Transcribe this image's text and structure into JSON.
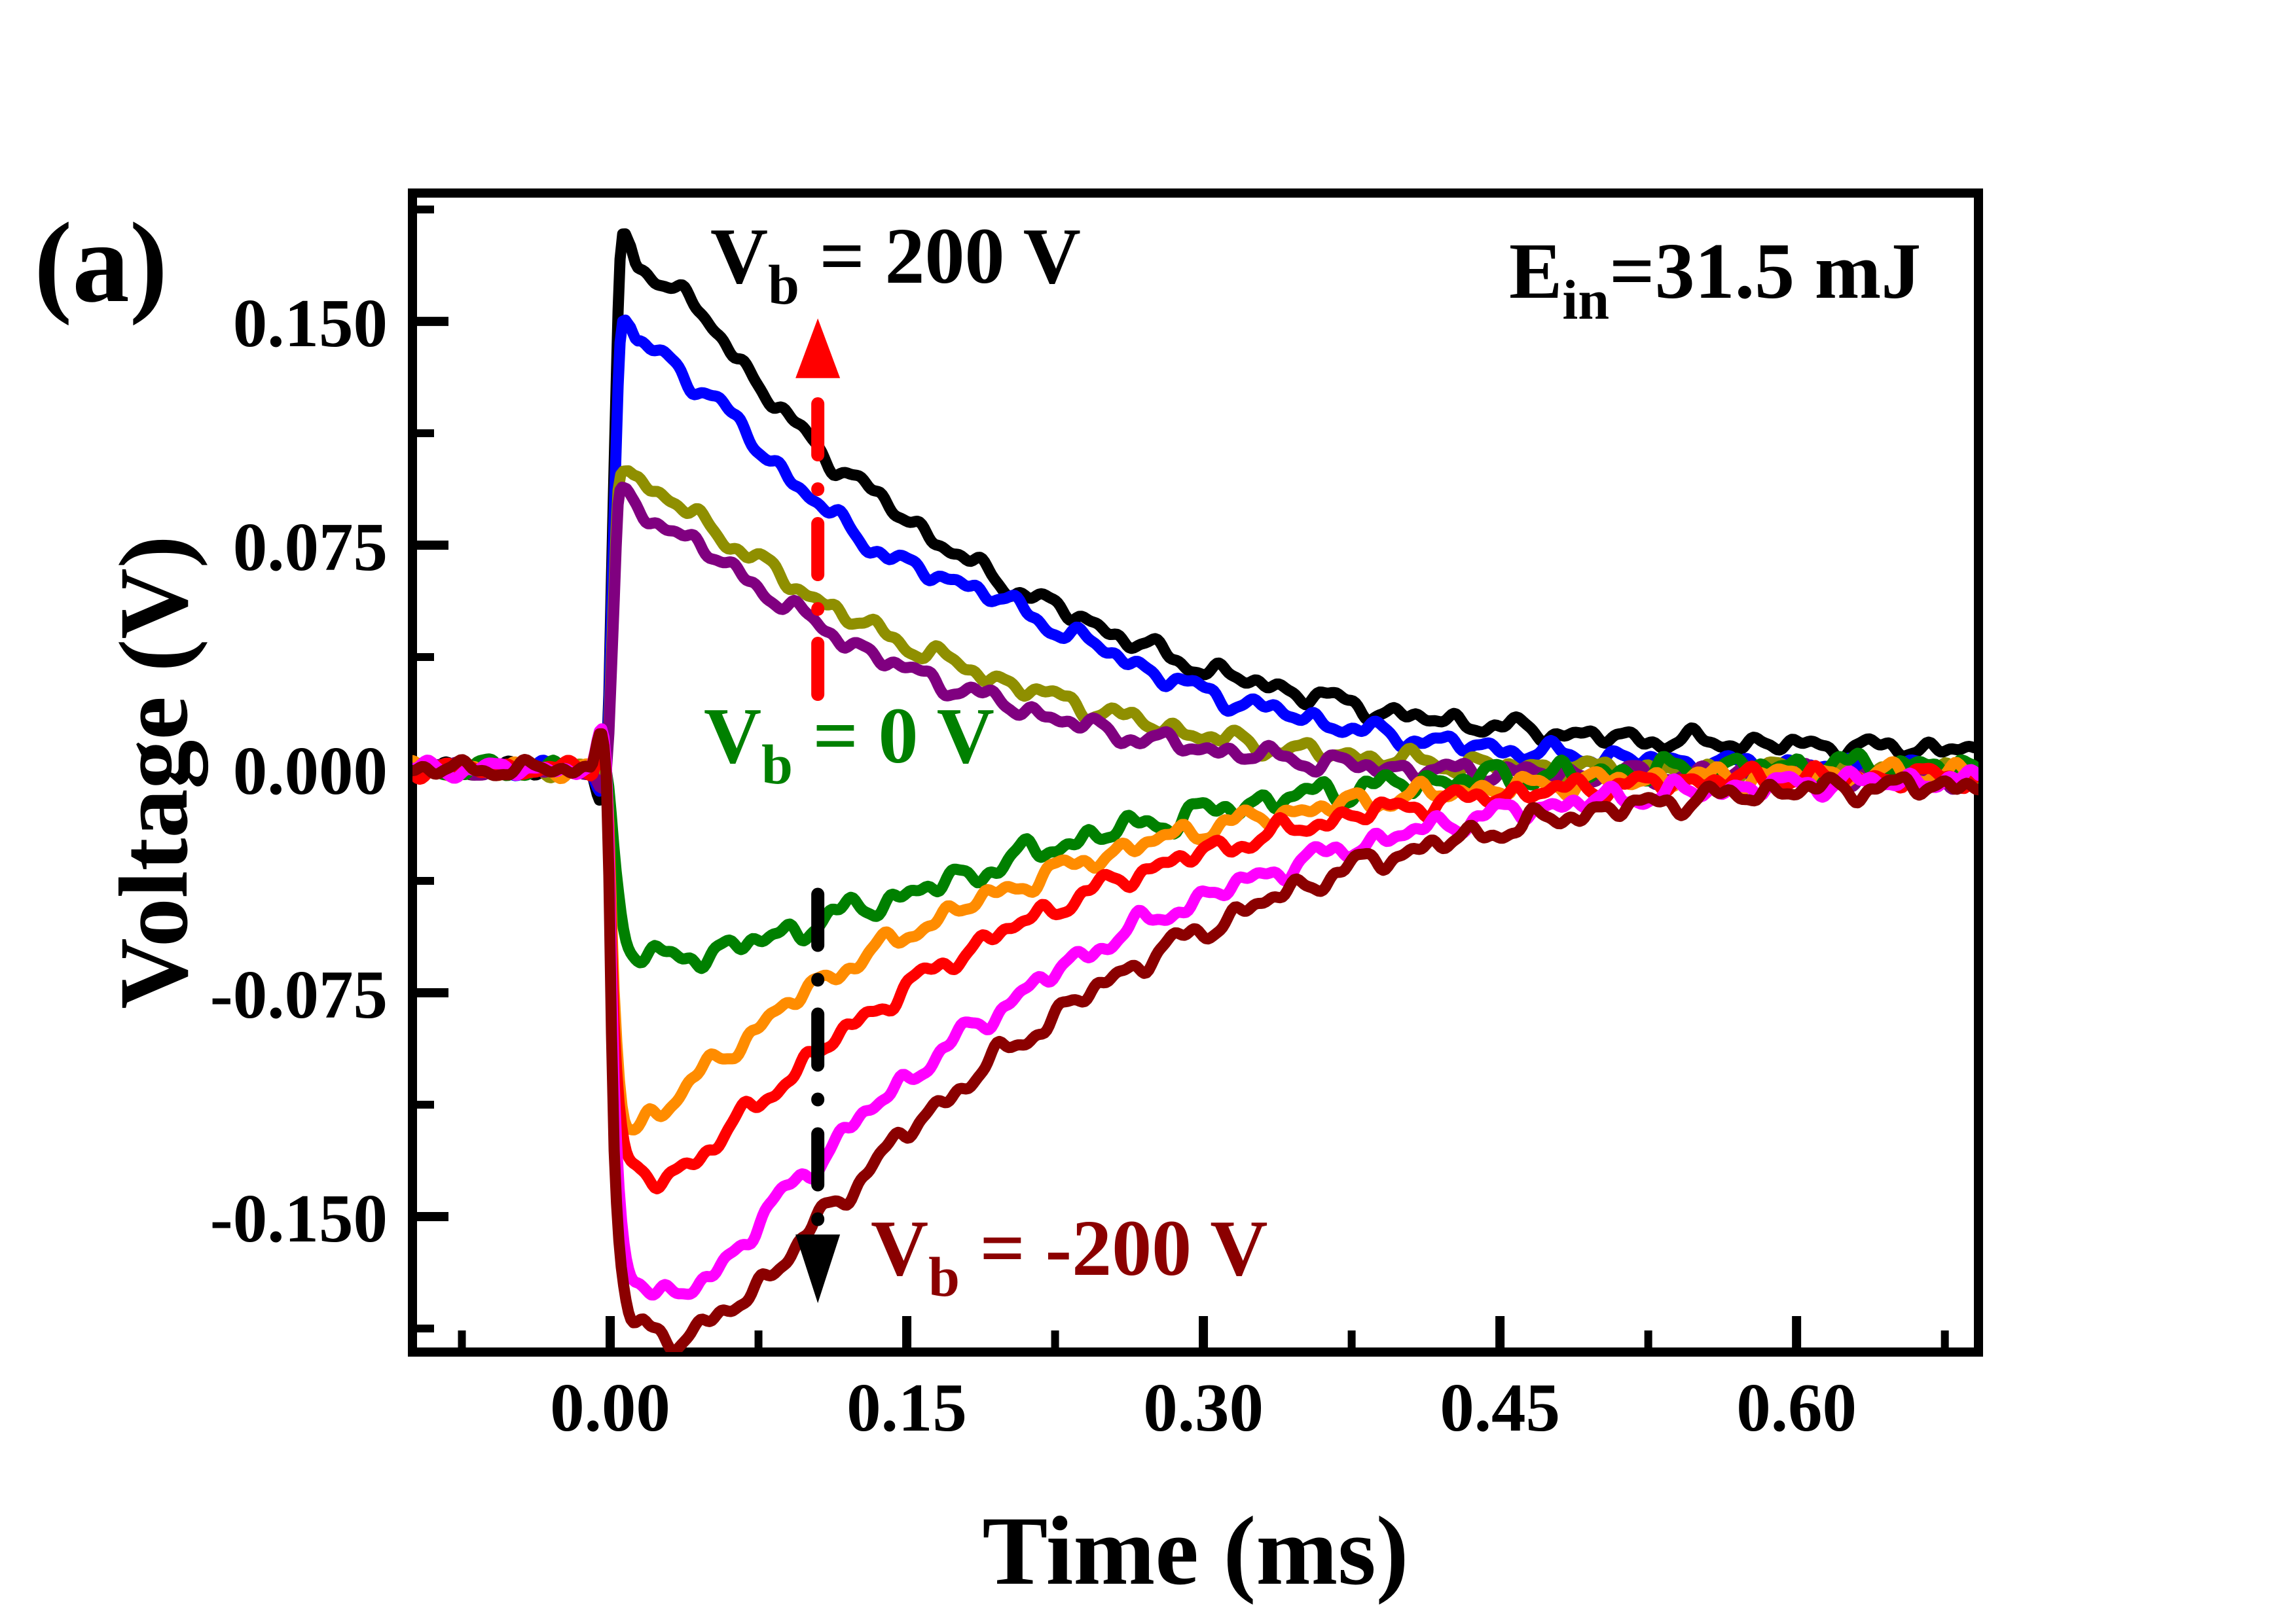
{
  "panel_label": "(a)",
  "annotations": {
    "vb_pos": {
      "main": "V",
      "sub": "b",
      "rest": " = 200 V",
      "color": "#000000"
    },
    "vb_zero": {
      "main": "V",
      "sub": "b",
      "rest": " = 0 V",
      "color": "#008000"
    },
    "vb_neg": {
      "main": "V",
      "sub": "b",
      "rest": " = -200 V",
      "color": "#8b0000"
    },
    "energy": {
      "main": "E",
      "sub": "in",
      "rest": "=31.5 mJ",
      "color": "#000000"
    }
  },
  "arrows": {
    "up": {
      "color": "#ff0000",
      "t_ms": 0.105,
      "v_shaft_from": 0.025,
      "v_shaft_to": 0.131,
      "v_tip": 0.151,
      "direction": "up"
    },
    "down": {
      "color": "#000000",
      "t_ms": 0.105,
      "v_shaft_from": -0.042,
      "v_shaft_to": -0.156,
      "v_tip": -0.179,
      "direction": "down"
    }
  },
  "chart_data": {
    "type": "line",
    "title": "",
    "xlabel": "Time (ms)",
    "ylabel": "Voltage (V)",
    "xlim": [
      -0.1,
      0.692
    ],
    "ylim": [
      -0.1954,
      0.193
    ],
    "grid": false,
    "legend": "none",
    "x_major_ticks": [
      0.0,
      0.15,
      0.3,
      0.45,
      0.6
    ],
    "x_tick_labels": [
      "0.00",
      "0.15",
      "0.30",
      "0.45",
      "0.60"
    ],
    "x_minor_step": 0.075,
    "y_major_ticks": [
      0.15,
      0.075,
      0.0,
      -0.075,
      -0.15
    ],
    "y_tick_labels": [
      "0.150",
      "0.075",
      "0.000",
      "-0.075",
      "-0.150"
    ],
    "y_minor_step": 0.0375,
    "noise_model": {
      "amplitudes_v": [
        0.0018,
        0.001,
        0.0012,
        0.0006
      ],
      "wavelengths_ms": [
        0.03,
        0.017,
        0.046,
        0.01
      ],
      "baseline_scale": 0.7
    },
    "baseline_knots": [
      [
        -0.1,
        0
      ],
      [
        -0.06,
        0
      ],
      [
        -0.03,
        0
      ],
      [
        -0.01,
        0
      ],
      [
        -0.002,
        0
      ]
    ],
    "series": [
      {
        "name": "trace-black",
        "bias_label": "Vb = 200 V",
        "color": "#000000",
        "noise_scale": 1.0,
        "knots": [
          [
            0.002,
            0.1
          ],
          [
            0.005,
            0.168
          ],
          [
            0.009,
            0.176
          ],
          [
            0.014,
            0.169
          ],
          [
            0.025,
            0.165
          ],
          [
            0.04,
            0.156
          ],
          [
            0.055,
            0.146
          ],
          [
            0.07,
            0.133
          ],
          [
            0.085,
            0.121
          ],
          [
            0.1,
            0.111
          ],
          [
            0.12,
            0.099
          ],
          [
            0.14,
            0.089
          ],
          [
            0.16,
            0.079
          ],
          [
            0.18,
            0.07
          ],
          [
            0.2,
            0.062
          ],
          [
            0.23,
            0.053
          ],
          [
            0.26,
            0.044
          ],
          [
            0.29,
            0.036
          ],
          [
            0.32,
            0.03
          ],
          [
            0.36,
            0.024
          ],
          [
            0.4,
            0.018
          ],
          [
            0.44,
            0.015
          ],
          [
            0.48,
            0.012
          ],
          [
            0.52,
            0.01
          ],
          [
            0.56,
            0.009
          ],
          [
            0.6,
            0.008
          ],
          [
            0.65,
            0.007
          ],
          [
            0.692,
            0.007
          ]
        ]
      },
      {
        "name": "trace-blue",
        "bias_label": null,
        "color": "#0000ff",
        "noise_scale": 1.0,
        "knots": [
          [
            0.002,
            0.085
          ],
          [
            0.005,
            0.143
          ],
          [
            0.009,
            0.151
          ],
          [
            0.014,
            0.143
          ],
          [
            0.03,
            0.137
          ],
          [
            0.045,
            0.128
          ],
          [
            0.06,
            0.119
          ],
          [
            0.075,
            0.108
          ],
          [
            0.09,
            0.098
          ],
          [
            0.105,
            0.089
          ],
          [
            0.12,
            0.081
          ],
          [
            0.135,
            0.074
          ],
          [
            0.15,
            0.068
          ],
          [
            0.165,
            0.065
          ],
          [
            0.18,
            0.062
          ],
          [
            0.2,
            0.056
          ],
          [
            0.22,
            0.049
          ],
          [
            0.25,
            0.04
          ],
          [
            0.28,
            0.031
          ],
          [
            0.31,
            0.024
          ],
          [
            0.34,
            0.019
          ],
          [
            0.38,
            0.013
          ],
          [
            0.42,
            0.009
          ],
          [
            0.46,
            0.006
          ],
          [
            0.5,
            0.004
          ],
          [
            0.55,
            0.002
          ],
          [
            0.6,
            0.001
          ],
          [
            0.65,
            0.0
          ],
          [
            0.692,
            -0.001
          ]
        ]
      },
      {
        "name": "trace-dark-yellow",
        "bias_label": null,
        "color": "#8f8f00",
        "noise_scale": 1.0,
        "knots": [
          [
            0.002,
            0.065
          ],
          [
            0.004,
            0.096
          ],
          [
            0.008,
            0.102
          ],
          [
            0.013,
            0.097
          ],
          [
            0.025,
            0.092
          ],
          [
            0.04,
            0.086
          ],
          [
            0.055,
            0.079
          ],
          [
            0.07,
            0.072
          ],
          [
            0.085,
            0.065
          ],
          [
            0.1,
            0.059
          ],
          [
            0.12,
            0.051
          ],
          [
            0.14,
            0.045
          ],
          [
            0.16,
            0.039
          ],
          [
            0.18,
            0.034
          ],
          [
            0.2,
            0.029
          ],
          [
            0.225,
            0.024
          ],
          [
            0.25,
            0.019
          ],
          [
            0.28,
            0.014
          ],
          [
            0.31,
            0.01
          ],
          [
            0.35,
            0.006
          ],
          [
            0.4,
            0.003
          ],
          [
            0.45,
            0.001
          ],
          [
            0.5,
            0.0
          ],
          [
            0.55,
            -0.001
          ],
          [
            0.6,
            -0.001
          ],
          [
            0.65,
            -0.002
          ],
          [
            0.692,
            -0.002
          ]
        ]
      },
      {
        "name": "trace-purple",
        "bias_label": null,
        "color": "#800080",
        "noise_scale": 1.0,
        "knots": [
          [
            0.002,
            0.055
          ],
          [
            0.004,
            0.086
          ],
          [
            0.007,
            0.091
          ],
          [
            0.012,
            0.087
          ],
          [
            0.025,
            0.083
          ],
          [
            0.04,
            0.077
          ],
          [
            0.055,
            0.07
          ],
          [
            0.07,
            0.063
          ],
          [
            0.085,
            0.057
          ],
          [
            0.1,
            0.05
          ],
          [
            0.12,
            0.043
          ],
          [
            0.14,
            0.036
          ],
          [
            0.16,
            0.031
          ],
          [
            0.18,
            0.026
          ],
          [
            0.2,
            0.022
          ],
          [
            0.225,
            0.017
          ],
          [
            0.25,
            0.013
          ],
          [
            0.28,
            0.009
          ],
          [
            0.31,
            0.006
          ],
          [
            0.35,
            0.003
          ],
          [
            0.4,
            0.0
          ],
          [
            0.45,
            -0.001
          ],
          [
            0.5,
            -0.002
          ],
          [
            0.55,
            -0.002
          ],
          [
            0.6,
            -0.002
          ],
          [
            0.65,
            -0.003
          ],
          [
            0.692,
            -0.003
          ]
        ]
      },
      {
        "name": "trace-green",
        "bias_label": "Vb = 0 V",
        "color": "#008000",
        "noise_scale": 1.35,
        "knots": [
          [
            0.003,
            -0.035
          ],
          [
            0.008,
            -0.055
          ],
          [
            0.015,
            -0.061
          ],
          [
            0.025,
            -0.064
          ],
          [
            0.045,
            -0.062
          ],
          [
            0.065,
            -0.059
          ],
          [
            0.085,
            -0.056
          ],
          [
            0.105,
            -0.051
          ],
          [
            0.13,
            -0.046
          ],
          [
            0.15,
            -0.042
          ],
          [
            0.175,
            -0.037
          ],
          [
            0.2,
            -0.031
          ],
          [
            0.23,
            -0.025
          ],
          [
            0.26,
            -0.02
          ],
          [
            0.29,
            -0.016
          ],
          [
            0.32,
            -0.012
          ],
          [
            0.36,
            -0.008
          ],
          [
            0.4,
            -0.005
          ],
          [
            0.44,
            -0.003
          ],
          [
            0.48,
            -0.002
          ],
          [
            0.52,
            -0.001
          ],
          [
            0.56,
            0.0
          ],
          [
            0.6,
            0.001
          ],
          [
            0.65,
            0.001
          ],
          [
            0.692,
            0.0
          ]
        ]
      },
      {
        "name": "trace-orange",
        "bias_label": null,
        "color": "#ff8c00",
        "noise_scale": 1.1,
        "knots": [
          [
            0.002,
            -0.075
          ],
          [
            0.006,
            -0.112
          ],
          [
            0.011,
            -0.121
          ],
          [
            0.02,
            -0.116
          ],
          [
            0.035,
            -0.109
          ],
          [
            0.05,
            -0.1
          ],
          [
            0.065,
            -0.092
          ],
          [
            0.08,
            -0.084
          ],
          [
            0.1,
            -0.074
          ],
          [
            0.12,
            -0.066
          ],
          [
            0.14,
            -0.059
          ],
          [
            0.16,
            -0.052
          ],
          [
            0.18,
            -0.046
          ],
          [
            0.21,
            -0.038
          ],
          [
            0.24,
            -0.031
          ],
          [
            0.27,
            -0.025
          ],
          [
            0.3,
            -0.02
          ],
          [
            0.34,
            -0.015
          ],
          [
            0.38,
            -0.011
          ],
          [
            0.42,
            -0.008
          ],
          [
            0.46,
            -0.006
          ],
          [
            0.5,
            -0.004
          ],
          [
            0.55,
            -0.003
          ],
          [
            0.6,
            -0.002
          ],
          [
            0.65,
            -0.002
          ],
          [
            0.692,
            -0.001
          ]
        ]
      },
      {
        "name": "trace-red",
        "bias_label": null,
        "color": "#ff0000",
        "noise_scale": 1.1,
        "knots": [
          [
            0.002,
            -0.085
          ],
          [
            0.007,
            -0.126
          ],
          [
            0.014,
            -0.135
          ],
          [
            0.025,
            -0.138
          ],
          [
            0.04,
            -0.132
          ],
          [
            0.055,
            -0.124
          ],
          [
            0.07,
            -0.115
          ],
          [
            0.085,
            -0.106
          ],
          [
            0.1,
            -0.098
          ],
          [
            0.12,
            -0.087
          ],
          [
            0.14,
            -0.078
          ],
          [
            0.16,
            -0.069
          ],
          [
            0.18,
            -0.061
          ],
          [
            0.21,
            -0.051
          ],
          [
            0.24,
            -0.042
          ],
          [
            0.27,
            -0.034
          ],
          [
            0.3,
            -0.028
          ],
          [
            0.34,
            -0.021
          ],
          [
            0.38,
            -0.015
          ],
          [
            0.42,
            -0.011
          ],
          [
            0.46,
            -0.008
          ],
          [
            0.5,
            -0.006
          ],
          [
            0.55,
            -0.004
          ],
          [
            0.6,
            -0.003
          ],
          [
            0.65,
            -0.003
          ],
          [
            0.692,
            -0.002
          ]
        ]
      },
      {
        "name": "trace-magenta",
        "bias_label": null,
        "color": "#ff00ff",
        "noise_scale": 1.15,
        "knots": [
          [
            0.002,
            -0.105
          ],
          [
            0.007,
            -0.158
          ],
          [
            0.015,
            -0.17
          ],
          [
            0.03,
            -0.177
          ],
          [
            0.05,
            -0.17
          ],
          [
            0.07,
            -0.156
          ],
          [
            0.09,
            -0.141
          ],
          [
            0.11,
            -0.128
          ],
          [
            0.13,
            -0.115
          ],
          [
            0.15,
            -0.104
          ],
          [
            0.175,
            -0.091
          ],
          [
            0.2,
            -0.079
          ],
          [
            0.23,
            -0.066
          ],
          [
            0.26,
            -0.055
          ],
          [
            0.29,
            -0.046
          ],
          [
            0.32,
            -0.038
          ],
          [
            0.36,
            -0.029
          ],
          [
            0.4,
            -0.022
          ],
          [
            0.44,
            -0.016
          ],
          [
            0.48,
            -0.012
          ],
          [
            0.52,
            -0.009
          ],
          [
            0.56,
            -0.007
          ],
          [
            0.6,
            -0.005
          ],
          [
            0.65,
            -0.004
          ],
          [
            0.692,
            -0.004
          ]
        ]
      },
      {
        "name": "trace-dark-red",
        "bias_label": "Vb = -200 V",
        "color": "#8b0000",
        "noise_scale": 1.2,
        "knots": [
          [
            0.002,
            -0.125
          ],
          [
            0.008,
            -0.18
          ],
          [
            0.018,
            -0.187
          ],
          [
            0.035,
            -0.19
          ],
          [
            0.055,
            -0.184
          ],
          [
            0.075,
            -0.173
          ],
          [
            0.095,
            -0.159
          ],
          [
            0.115,
            -0.145
          ],
          [
            0.135,
            -0.131
          ],
          [
            0.155,
            -0.119
          ],
          [
            0.18,
            -0.105
          ],
          [
            0.21,
            -0.09
          ],
          [
            0.24,
            -0.076
          ],
          [
            0.27,
            -0.064
          ],
          [
            0.3,
            -0.054
          ],
          [
            0.34,
            -0.042
          ],
          [
            0.38,
            -0.032
          ],
          [
            0.42,
            -0.025
          ],
          [
            0.46,
            -0.019
          ],
          [
            0.5,
            -0.014
          ],
          [
            0.55,
            -0.01
          ],
          [
            0.6,
            -0.007
          ],
          [
            0.65,
            -0.006
          ],
          [
            0.692,
            -0.005
          ]
        ]
      }
    ]
  }
}
